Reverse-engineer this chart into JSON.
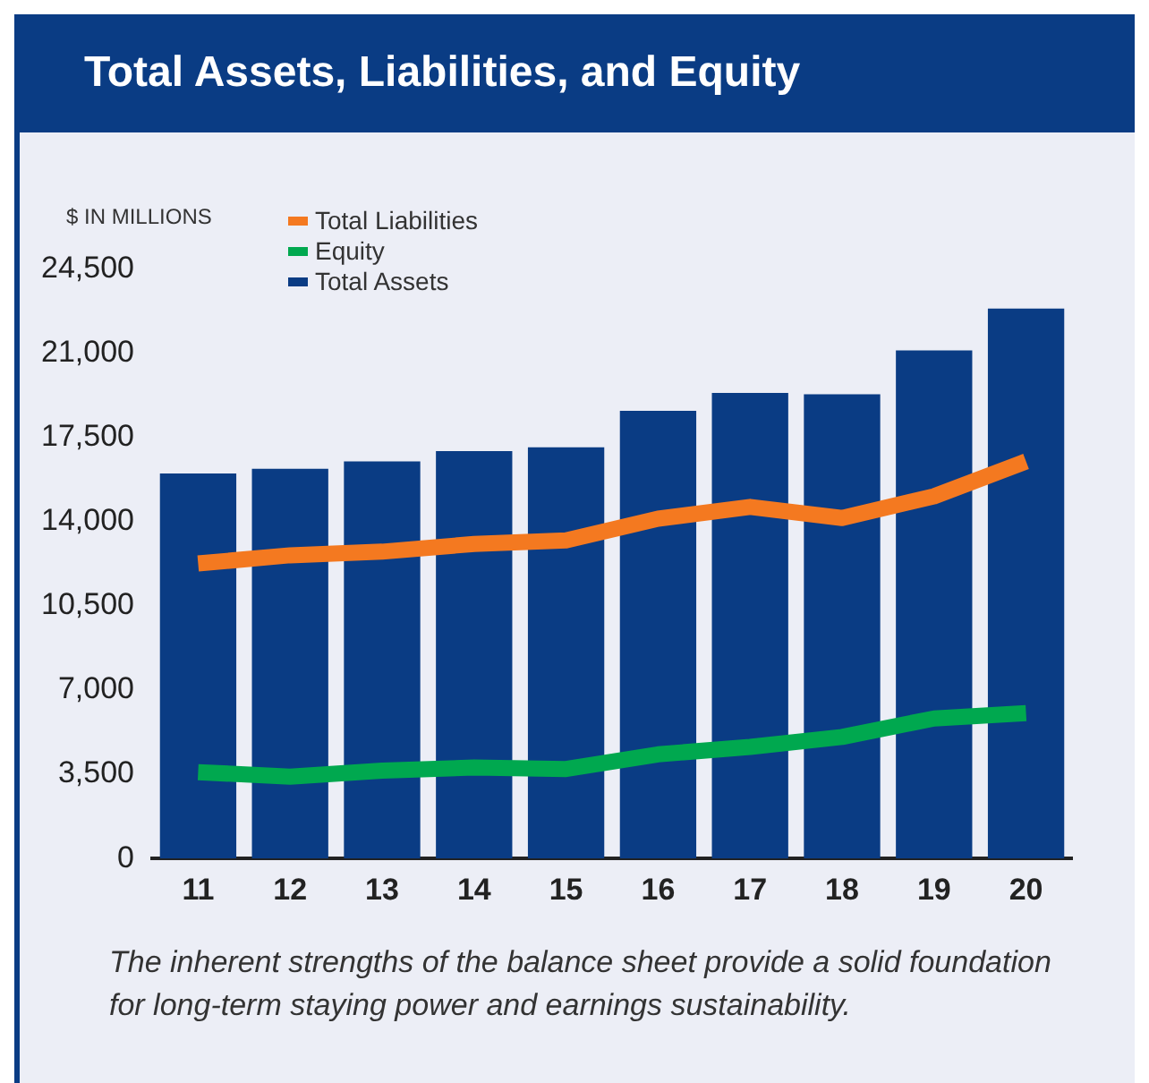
{
  "chart_data": {
    "type": "bar",
    "title": "Total Assets, Liabilities, and Equity",
    "ylabel": "$ IN MILLIONS",
    "categories": [
      "11",
      "12",
      "13",
      "14",
      "15",
      "16",
      "17",
      "18",
      "19",
      "20"
    ],
    "series": [
      {
        "name": "Total Liabilities",
        "type": "line",
        "color": "#f47920",
        "values": [
          12260,
          12600,
          12750,
          13070,
          13220,
          14120,
          14610,
          14150,
          15050,
          16500
        ]
      },
      {
        "name": "Equity",
        "type": "line",
        "color": "#00a84f",
        "values": [
          3590,
          3400,
          3650,
          3780,
          3720,
          4330,
          4640,
          5050,
          5820,
          6040
        ]
      },
      {
        "name": "Total Assets",
        "type": "bar",
        "color": "#0a3c84",
        "values": [
          16000,
          16190,
          16500,
          16930,
          17090,
          18600,
          19350,
          19290,
          21110,
          22850
        ]
      }
    ],
    "ylim": [
      0,
      24500
    ],
    "yticks": [
      0,
      {
        "value": 3500,
        "label": "3,500"
      },
      {
        "value": 7000,
        "label": "7,000"
      },
      {
        "value": 10500,
        "label": "10,500"
      },
      {
        "value": 14000,
        "label": "14,000"
      },
      {
        "value": 17500,
        "label": "17,500"
      },
      {
        "value": 21000,
        "label": "21,000"
      },
      {
        "value": 24500,
        "label": "24,500"
      }
    ],
    "grid": false,
    "legend": "top left",
    "marker": "none",
    "annotations": [
      "The inherent strengths of the balance sheet provide a solid foundation for long-term staying power and earnings sustainability."
    ]
  }
}
